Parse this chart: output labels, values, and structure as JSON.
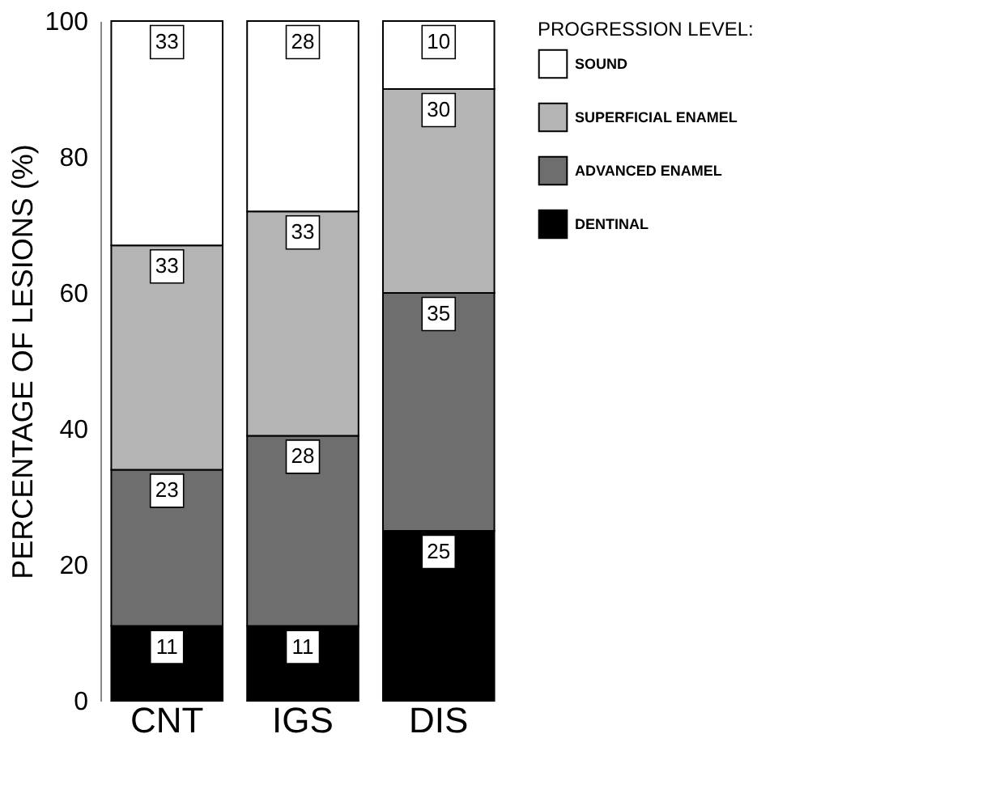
{
  "chart_data": {
    "type": "bar",
    "stacked": true,
    "ylabel": "PERCENTAGE OF LESIONS (%)",
    "legend_title": "PROGRESSION LEVEL:",
    "categories": [
      "CNT",
      "IGS",
      "DIS"
    ],
    "series": [
      {
        "name": "DENTINAL",
        "color": "#000000",
        "values": [
          11,
          11,
          25
        ]
      },
      {
        "name": "ADVANCED ENAMEL",
        "color": "#6e6e6e",
        "values": [
          23,
          28,
          35
        ]
      },
      {
        "name": "SUPERFICIAL ENAMEL",
        "color": "#b4b4b4",
        "values": [
          33,
          33,
          30
        ]
      },
      {
        "name": "SOUND",
        "color": "#ffffff",
        "values": [
          33,
          28,
          10
        ]
      }
    ],
    "ylim": [
      0,
      100
    ],
    "yticks": [
      0,
      20,
      40,
      60,
      80,
      100
    ],
    "grid": false,
    "legend": "right",
    "data_labels": true
  }
}
